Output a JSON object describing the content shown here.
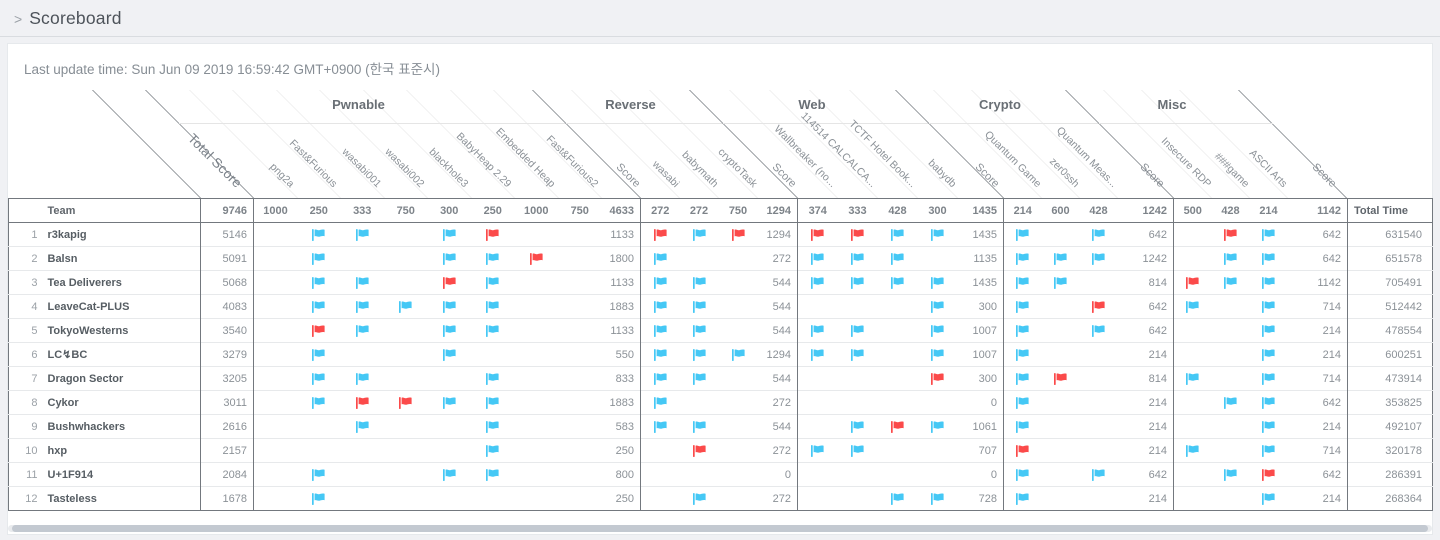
{
  "page": {
    "chevron": ">",
    "title": "Scoreboard",
    "last_update": "Last update time: Sun Jun 09 2019 16:59:42 GMT+0900 (한국 표준시)"
  },
  "colors": {
    "solved": "#45c8f5",
    "first_blood": "#fb4a4a"
  },
  "scoreboard": {
    "rank_header": "",
    "team_header": "Team",
    "total_score_header": "Total Score",
    "total_score_points": "9746",
    "score_header": "Score",
    "total_time_header": "Total Time",
    "categories": [
      {
        "name": "Pwnable",
        "challenges": [
          {
            "name": "png2a",
            "points": "1000"
          },
          {
            "name": "Fast&Furious",
            "points": "250"
          },
          {
            "name": "wasabi001",
            "points": "333"
          },
          {
            "name": "wasabi002",
            "points": "750"
          },
          {
            "name": "blackhole3",
            "points": "300"
          },
          {
            "name": "BabyHeap 2.29",
            "points": "250"
          },
          {
            "name": "Embedded Heap",
            "points": "1000"
          },
          {
            "name": "Fast&Furious2",
            "points": "750"
          }
        ],
        "score_points": "4633"
      },
      {
        "name": "Reverse",
        "challenges": [
          {
            "name": "wasabi",
            "points": "272"
          },
          {
            "name": "babymath",
            "points": "272"
          },
          {
            "name": "cryptoTask",
            "points": "750"
          }
        ],
        "score_points": "1294"
      },
      {
        "name": "Web",
        "challenges": [
          {
            "name": "Wallbreaker (no...",
            "points": "374"
          },
          {
            "name": "114514 CALCALCA...",
            "points": "333"
          },
          {
            "name": "TCTF Hotel Book...",
            "points": "428"
          },
          {
            "name": "babydb",
            "points": "300"
          }
        ],
        "score_points": "1435"
      },
      {
        "name": "Crypto",
        "challenges": [
          {
            "name": "Quantum Game",
            "points": "214"
          },
          {
            "name": "zer0ssh",
            "points": "600"
          },
          {
            "name": "Quantum Meas...",
            "points": "428"
          }
        ],
        "score_points": "1242"
      },
      {
        "name": "Misc",
        "challenges": [
          {
            "name": "Insecure RDP",
            "points": "500"
          },
          {
            "name": "###game",
            "points": "428"
          },
          {
            "name": "ASCII Arts",
            "points": "214"
          }
        ],
        "score_points": "1142"
      }
    ],
    "teams": [
      {
        "rank": "1",
        "name": "r3kapig",
        "total": "5146",
        "cats": [
          {
            "flags": [
              "",
              "solved",
              "solved",
              "",
              "solved",
              "first_blood",
              "",
              ""
            ],
            "score": "1133"
          },
          {
            "flags": [
              "first_blood",
              "solved",
              "first_blood"
            ],
            "score": "1294"
          },
          {
            "flags": [
              "first_blood",
              "first_blood",
              "solved",
              "solved"
            ],
            "score": "1435"
          },
          {
            "flags": [
              "solved",
              "",
              "solved"
            ],
            "score": "642"
          },
          {
            "flags": [
              "",
              "first_blood",
              "solved"
            ],
            "score": "642"
          }
        ],
        "total_time": "631540"
      },
      {
        "rank": "2",
        "name": "Balsn",
        "total": "5091",
        "cats": [
          {
            "flags": [
              "",
              "solved",
              "",
              "",
              "solved",
              "solved",
              "first_blood",
              ""
            ],
            "score": "1800"
          },
          {
            "flags": [
              "solved",
              "",
              ""
            ],
            "score": "272"
          },
          {
            "flags": [
              "solved",
              "solved",
              "solved",
              ""
            ],
            "score": "1135"
          },
          {
            "flags": [
              "solved",
              "solved",
              "solved"
            ],
            "score": "1242"
          },
          {
            "flags": [
              "",
              "solved",
              "solved"
            ],
            "score": "642"
          }
        ],
        "total_time": "651578"
      },
      {
        "rank": "3",
        "name": "Tea Deliverers",
        "total": "5068",
        "cats": [
          {
            "flags": [
              "",
              "solved",
              "solved",
              "",
              "first_blood",
              "solved",
              "",
              ""
            ],
            "score": "1133"
          },
          {
            "flags": [
              "solved",
              "solved",
              ""
            ],
            "score": "544"
          },
          {
            "flags": [
              "solved",
              "solved",
              "solved",
              "solved"
            ],
            "score": "1435"
          },
          {
            "flags": [
              "solved",
              "solved",
              ""
            ],
            "score": "814"
          },
          {
            "flags": [
              "first_blood",
              "solved",
              "solved"
            ],
            "score": "1142"
          }
        ],
        "total_time": "705491"
      },
      {
        "rank": "4",
        "name": "LeaveCat-PLUS",
        "total": "4083",
        "cats": [
          {
            "flags": [
              "",
              "solved",
              "solved",
              "solved",
              "solved",
              "solved",
              "",
              ""
            ],
            "score": "1883"
          },
          {
            "flags": [
              "solved",
              "solved",
              ""
            ],
            "score": "544"
          },
          {
            "flags": [
              "",
              "",
              "",
              "solved"
            ],
            "score": "300"
          },
          {
            "flags": [
              "solved",
              "",
              "first_blood"
            ],
            "score": "642"
          },
          {
            "flags": [
              "solved",
              "",
              "solved"
            ],
            "score": "714"
          }
        ],
        "total_time": "512442"
      },
      {
        "rank": "5",
        "name": "TokyoWesterns",
        "total": "3540",
        "cats": [
          {
            "flags": [
              "",
              "first_blood",
              "solved",
              "",
              "solved",
              "solved",
              "",
              ""
            ],
            "score": "1133"
          },
          {
            "flags": [
              "solved",
              "solved",
              ""
            ],
            "score": "544"
          },
          {
            "flags": [
              "solved",
              "solved",
              "",
              "solved"
            ],
            "score": "1007"
          },
          {
            "flags": [
              "solved",
              "",
              "solved"
            ],
            "score": "642"
          },
          {
            "flags": [
              "",
              "",
              "solved"
            ],
            "score": "214"
          }
        ],
        "total_time": "478554"
      },
      {
        "rank": "6",
        "name": "LC↯BC",
        "total": "3279",
        "cats": [
          {
            "flags": [
              "",
              "solved",
              "",
              "",
              "solved",
              "",
              "",
              ""
            ],
            "score": "550"
          },
          {
            "flags": [
              "solved",
              "solved",
              "solved"
            ],
            "score": "1294"
          },
          {
            "flags": [
              "solved",
              "solved",
              "",
              "solved"
            ],
            "score": "1007"
          },
          {
            "flags": [
              "solved",
              "",
              ""
            ],
            "score": "214"
          },
          {
            "flags": [
              "",
              "",
              "solved"
            ],
            "score": "214"
          }
        ],
        "total_time": "600251"
      },
      {
        "rank": "7",
        "name": "Dragon Sector",
        "total": "3205",
        "cats": [
          {
            "flags": [
              "",
              "solved",
              "solved",
              "",
              "",
              "solved",
              "",
              ""
            ],
            "score": "833"
          },
          {
            "flags": [
              "solved",
              "solved",
              ""
            ],
            "score": "544"
          },
          {
            "flags": [
              "",
              "",
              "",
              "first_blood"
            ],
            "score": "300"
          },
          {
            "flags": [
              "solved",
              "first_blood",
              ""
            ],
            "score": "814"
          },
          {
            "flags": [
              "solved",
              "",
              "solved"
            ],
            "score": "714"
          }
        ],
        "total_time": "473914"
      },
      {
        "rank": "8",
        "name": "Cykor",
        "total": "3011",
        "cats": [
          {
            "flags": [
              "",
              "solved",
              "first_blood",
              "first_blood",
              "solved",
              "solved",
              "",
              ""
            ],
            "score": "1883"
          },
          {
            "flags": [
              "solved",
              "",
              ""
            ],
            "score": "272"
          },
          {
            "flags": [
              "",
              "",
              "",
              ""
            ],
            "score": "0"
          },
          {
            "flags": [
              "solved",
              "",
              ""
            ],
            "score": "214"
          },
          {
            "flags": [
              "",
              "solved",
              "solved"
            ],
            "score": "642"
          }
        ],
        "total_time": "353825"
      },
      {
        "rank": "9",
        "name": "Bushwhackers",
        "total": "2616",
        "cats": [
          {
            "flags": [
              "",
              "",
              "solved",
              "",
              "",
              "solved",
              "",
              ""
            ],
            "score": "583"
          },
          {
            "flags": [
              "solved",
              "solved",
              ""
            ],
            "score": "544"
          },
          {
            "flags": [
              "",
              "solved",
              "first_blood",
              "solved"
            ],
            "score": "1061"
          },
          {
            "flags": [
              "solved",
              "",
              ""
            ],
            "score": "214"
          },
          {
            "flags": [
              "",
              "",
              "solved"
            ],
            "score": "214"
          }
        ],
        "total_time": "492107"
      },
      {
        "rank": "10",
        "name": "hxp",
        "total": "2157",
        "cats": [
          {
            "flags": [
              "",
              "",
              "",
              "",
              "",
              "solved",
              "",
              ""
            ],
            "score": "250"
          },
          {
            "flags": [
              "",
              "first_blood",
              ""
            ],
            "score": "272"
          },
          {
            "flags": [
              "solved",
              "solved",
              "",
              ""
            ],
            "score": "707"
          },
          {
            "flags": [
              "first_blood",
              "",
              ""
            ],
            "score": "214"
          },
          {
            "flags": [
              "solved",
              "",
              "solved"
            ],
            "score": "714"
          }
        ],
        "total_time": "320178"
      },
      {
        "rank": "11",
        "name": "U+1F914",
        "total": "2084",
        "cats": [
          {
            "flags": [
              "",
              "solved",
              "",
              "",
              "solved",
              "solved",
              "",
              ""
            ],
            "score": "800"
          },
          {
            "flags": [
              "",
              "",
              ""
            ],
            "score": "0"
          },
          {
            "flags": [
              "",
              "",
              "",
              ""
            ],
            "score": "0"
          },
          {
            "flags": [
              "solved",
              "",
              "solved"
            ],
            "score": "642"
          },
          {
            "flags": [
              "",
              "solved",
              "first_blood"
            ],
            "score": "642"
          }
        ],
        "total_time": "286391"
      },
      {
        "rank": "12",
        "name": "Tasteless",
        "total": "1678",
        "cats": [
          {
            "flags": [
              "",
              "solved",
              "",
              "",
              "",
              "",
              "",
              ""
            ],
            "score": "250"
          },
          {
            "flags": [
              "",
              "solved",
              ""
            ],
            "score": "272"
          },
          {
            "flags": [
              "",
              "",
              "solved",
              "solved"
            ],
            "score": "728"
          },
          {
            "flags": [
              "solved",
              "",
              ""
            ],
            "score": "214"
          },
          {
            "flags": [
              "",
              "",
              "solved"
            ],
            "score": "214"
          }
        ],
        "total_time": "268364"
      }
    ]
  }
}
